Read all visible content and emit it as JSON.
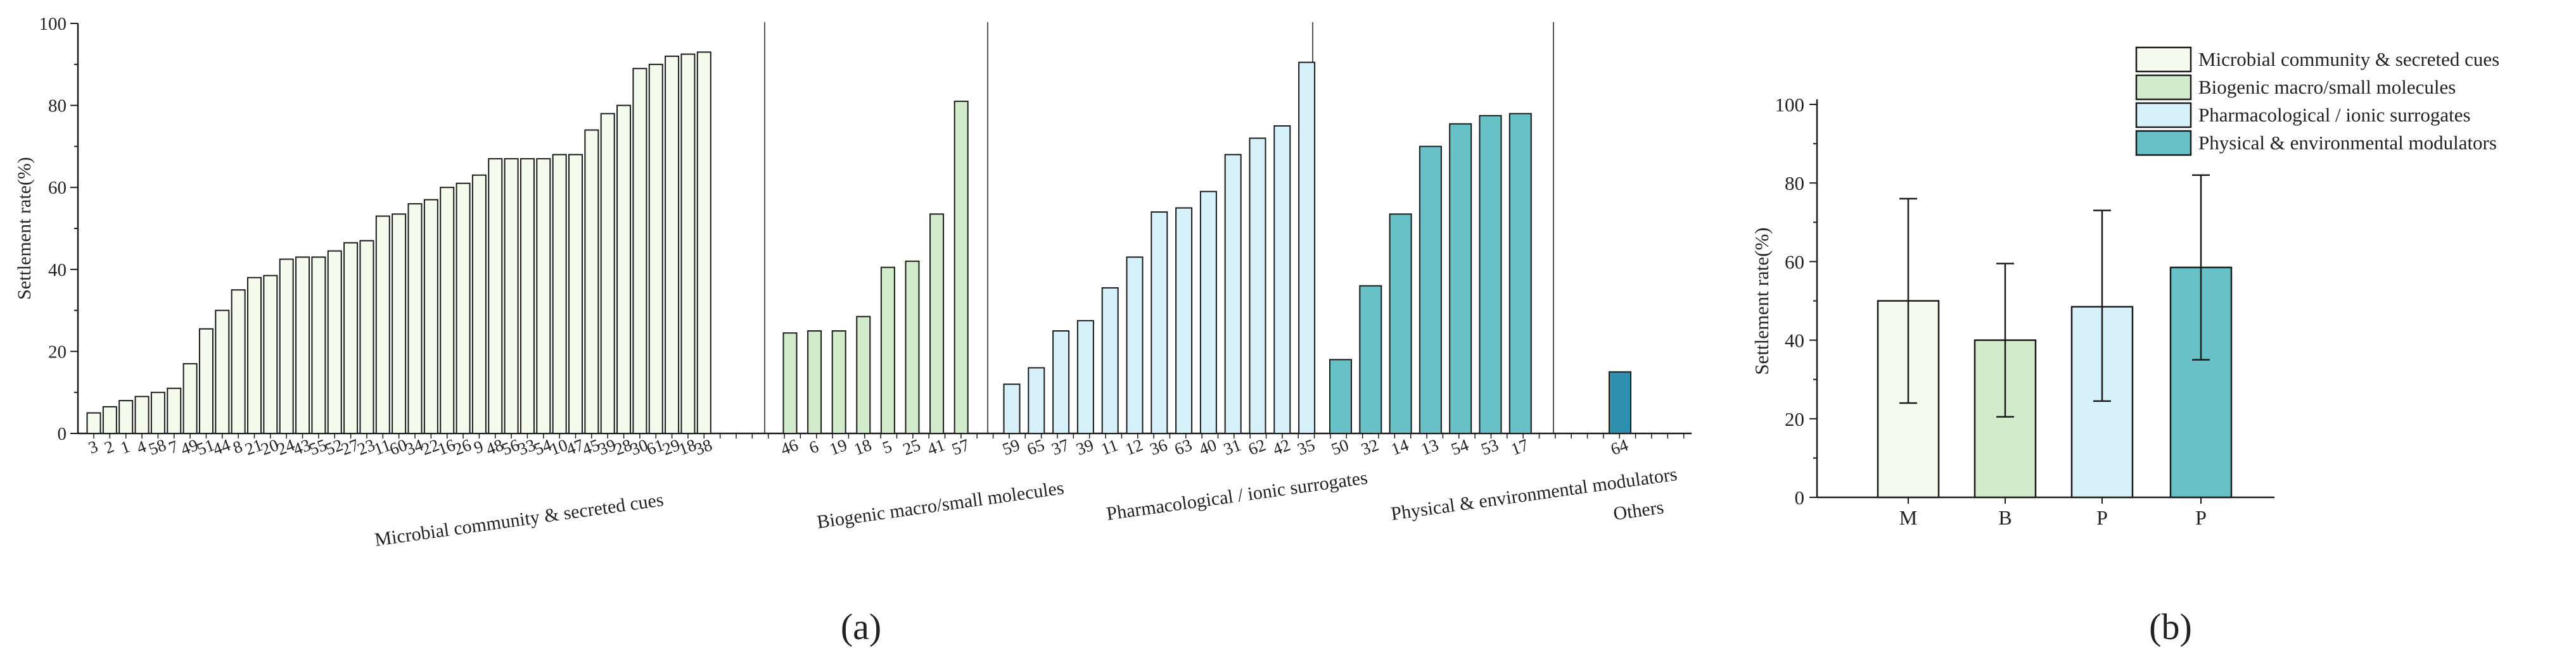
{
  "colors": {
    "microbial": "#f4fbed",
    "biogenic": "#d2eccb",
    "pharmacological": "#d6f1fa",
    "physical": "#68c1c6",
    "others": "#2f8fad",
    "stroke": "#1a1a1a"
  },
  "chart_data": [
    {
      "type": "bar",
      "panel_label": "(a)",
      "ylabel": "Settlement rate(%)",
      "ylim": [
        0,
        100
      ],
      "yticks": [
        0,
        20,
        40,
        60,
        80,
        100
      ],
      "groups": [
        {
          "name": "Microbial community & secreted cues",
          "color_key": "microbial",
          "categories": [
            "3",
            "2",
            "1",
            "4",
            "58",
            "7",
            "49",
            "51",
            "44",
            "8",
            "21",
            "20",
            "24",
            "43",
            "55",
            "52",
            "27",
            "23",
            "11",
            "60",
            "34",
            "22",
            "16",
            "26",
            "9",
            "48",
            "56",
            "33",
            "54",
            "10",
            "47",
            "45",
            "39",
            "28",
            "30",
            "61",
            "29",
            "18",
            "38"
          ],
          "values": [
            5,
            6.5,
            8,
            9,
            10,
            11,
            17,
            25.5,
            30,
            35,
            38,
            38.5,
            42.5,
            43,
            43,
            44.5,
            46.5,
            47,
            53,
            53.5,
            56,
            57,
            60,
            61,
            63,
            67,
            67,
            67,
            67,
            68,
            68,
            74,
            78,
            80,
            89,
            90,
            92,
            92.5,
            93
          ]
        },
        {
          "name": "Biogenic macro/small molecules",
          "color_key": "biogenic",
          "categories": [
            "46",
            "6",
            "19",
            "18",
            "5",
            "25",
            "41",
            "57"
          ],
          "values": [
            24.5,
            25,
            25,
            28.5,
            40.5,
            42,
            53.5,
            81
          ]
        },
        {
          "name": "Pharmacological / ionic surrogates",
          "color_key": "pharmacological",
          "categories": [
            "59",
            "65",
            "37",
            "39",
            "11",
            "12",
            "36",
            "63",
            "40",
            "31",
            "62",
            "42",
            "35"
          ],
          "values": [
            12,
            16,
            25,
            27.5,
            35.5,
            43,
            54,
            55,
            59,
            68,
            72,
            75,
            90.5
          ]
        },
        {
          "name": "Physical & environmental modulators",
          "color_key": "physical",
          "categories": [
            "50",
            "32",
            "14",
            "13",
            "54",
            "53",
            "17"
          ],
          "values": [
            18,
            36,
            53.5,
            70,
            75.5,
            77.5,
            78
          ]
        },
        {
          "name": "Others",
          "color_key": "others",
          "categories": [
            "64"
          ],
          "values": [
            15
          ]
        }
      ]
    },
    {
      "type": "bar",
      "panel_label": "(b)",
      "ylabel": "Settlement rate(%)",
      "ylim": [
        0,
        100
      ],
      "yticks": [
        0,
        20,
        40,
        60,
        80,
        100
      ],
      "categories": [
        "M",
        "B",
        "P",
        "P"
      ],
      "values": [
        50,
        40,
        48.5,
        58.5
      ],
      "error_low": [
        24,
        20.5,
        24.5,
        35
      ],
      "error_high": [
        76,
        59.5,
        73,
        82
      ],
      "color_keys": [
        "microbial",
        "biogenic",
        "pharmacological",
        "physical"
      ],
      "legend_position": "top-right",
      "legend": [
        "Microbial community & secreted cues",
        "Biogenic macro/small molecules",
        "Pharmacological / ionic surrogates",
        "Physical & environmental modulators"
      ]
    }
  ]
}
